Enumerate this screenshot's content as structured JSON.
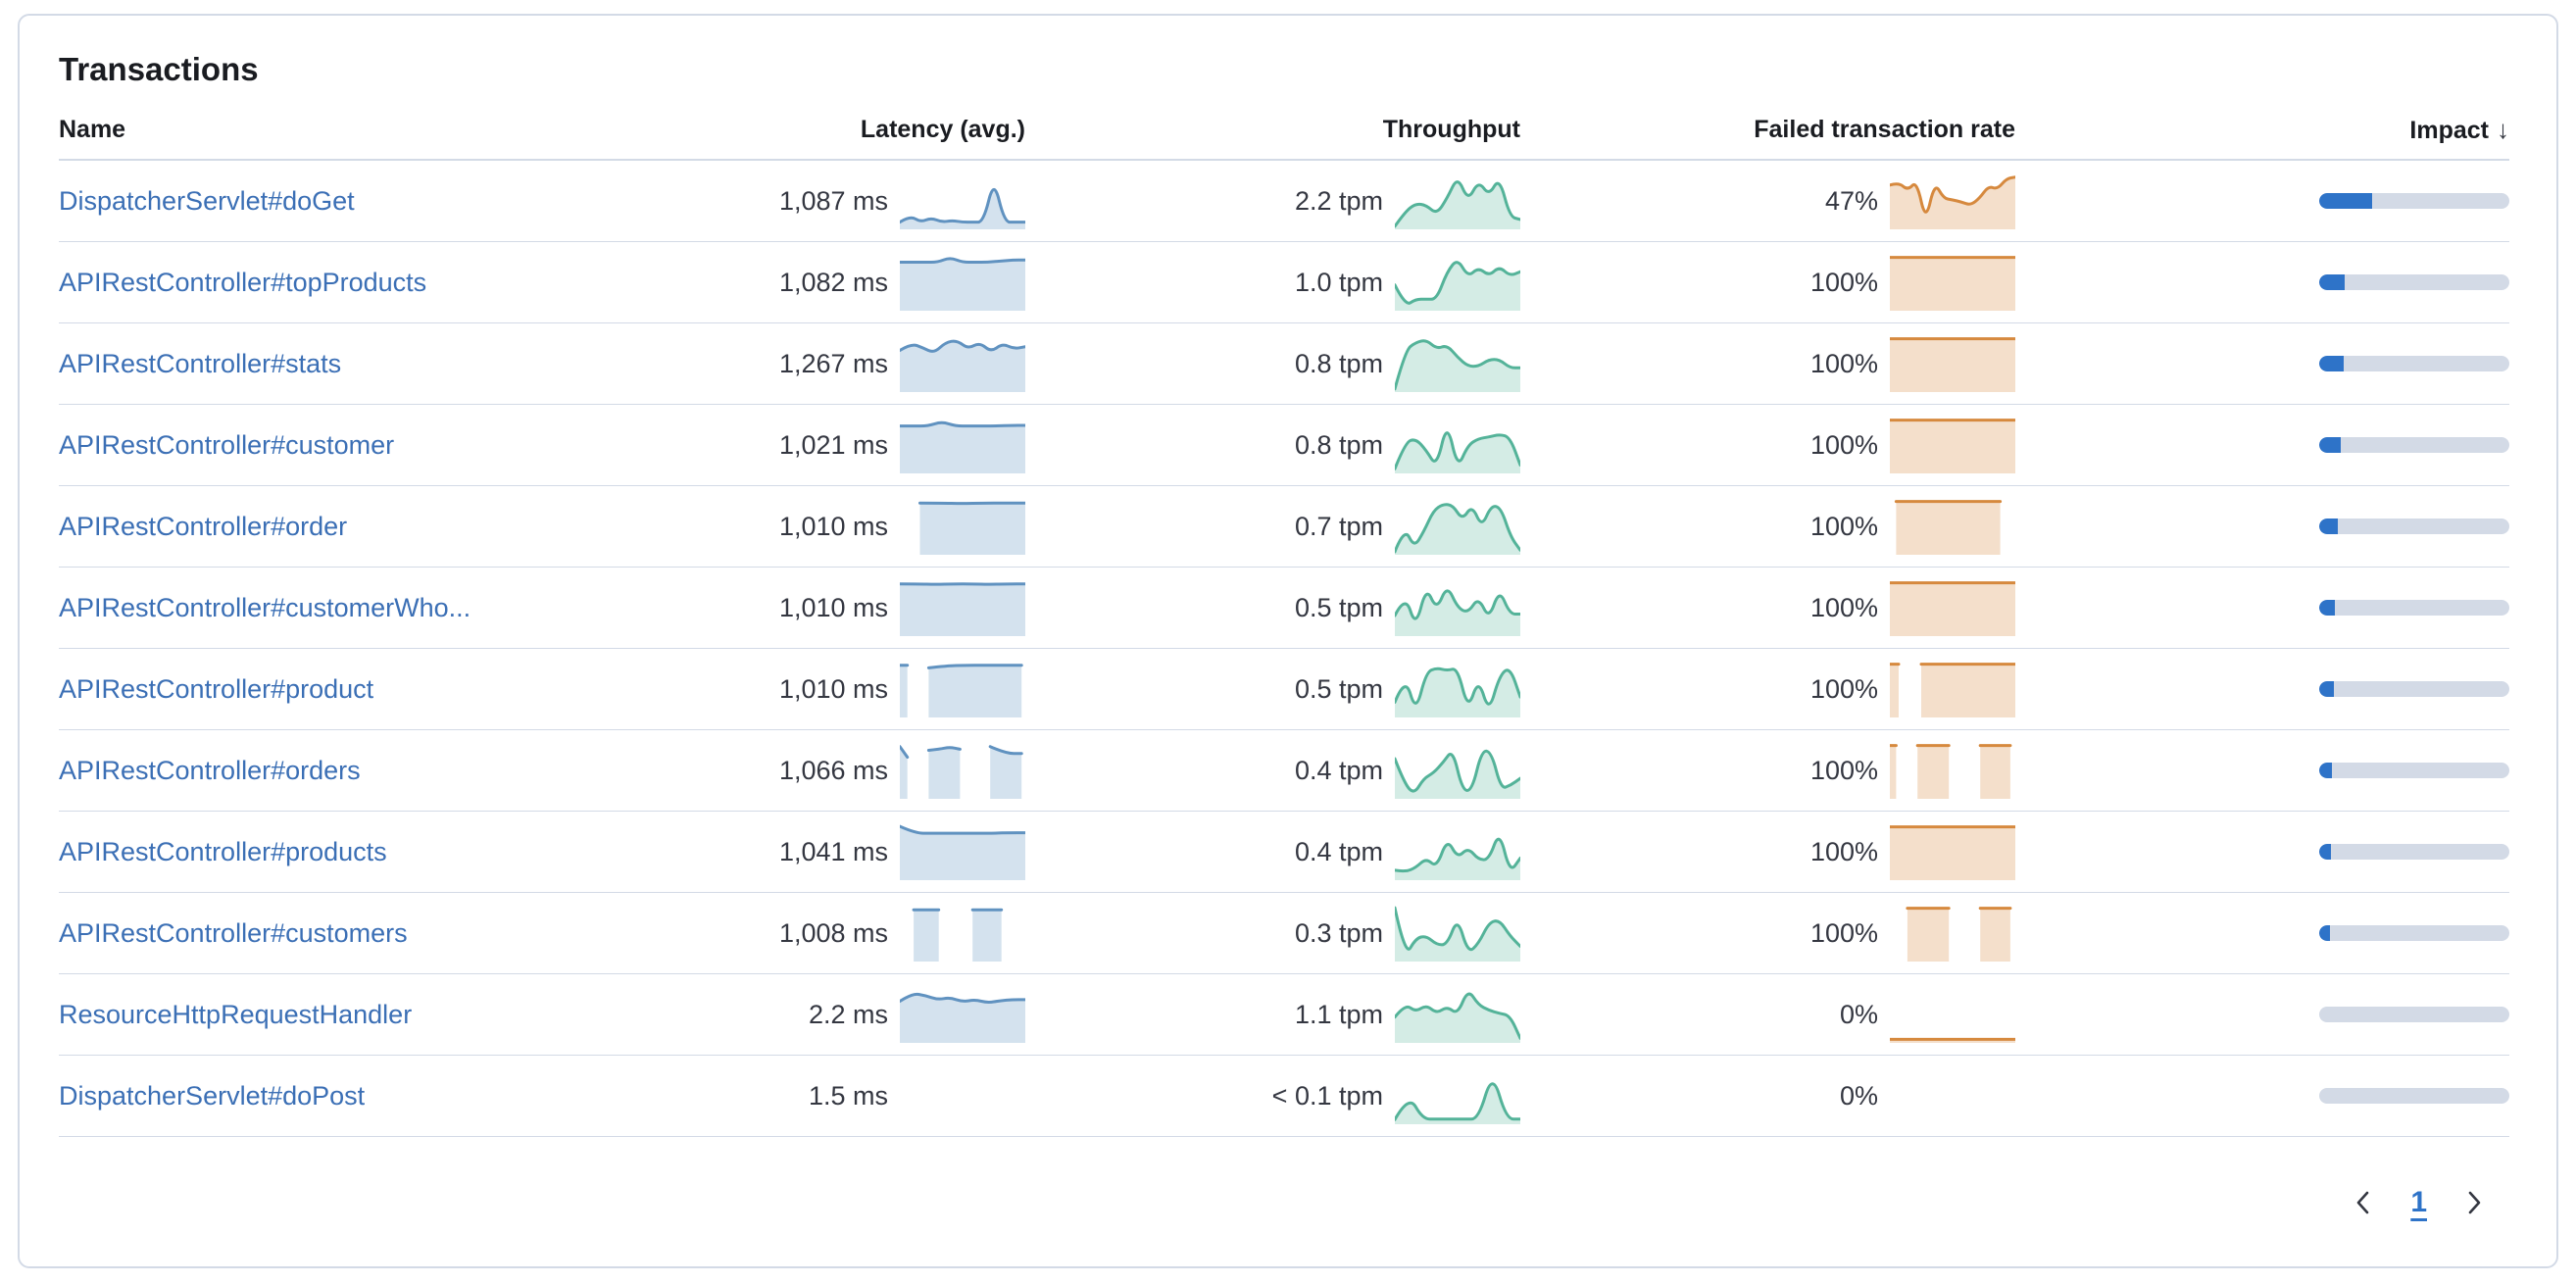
{
  "panel": {
    "title": "Transactions"
  },
  "colors": {
    "link": "#3b6fb5",
    "latency_line": "#6092c0",
    "latency_fill": "rgba(96,146,192,0.27)",
    "throughput_line": "#54b399",
    "throughput_fill": "rgba(84,179,153,0.25)",
    "error_line": "#d6893e",
    "error_fill": "rgba(214,137,62,0.27)",
    "impact_fill": "#2e73c8",
    "impact_track": "#d3dae6"
  },
  "table": {
    "columns": [
      {
        "key": "name",
        "label": "Name"
      },
      {
        "key": "latency",
        "label": "Latency (avg.)"
      },
      {
        "key": "throughput",
        "label": "Throughput"
      },
      {
        "key": "error_rate",
        "label": "Failed transaction rate"
      },
      {
        "key": "impact",
        "label": "Impact"
      }
    ],
    "sort_icon": "↓",
    "rows": [
      {
        "name": "DispatcherServlet#doGet",
        "latency": "1,087 ms",
        "throughput": "2.2 tpm",
        "error_rate": "47%",
        "impact_pct": 28,
        "latency_spark": {
          "segs": [
            {
              "x0": 0,
              "x1": 1,
              "v": [
                0.1,
                0.22,
                0.1,
                0.18,
                0.1,
                0.13,
                0.1,
                0.1,
                0.1,
                0.92,
                0.1,
                0.1,
                0.1
              ]
            }
          ]
        },
        "throughput_spark": {
          "segs": [
            {
              "x0": 0,
              "x1": 1,
              "v": [
                0.02,
                0.3,
                0.45,
                0.42,
                0.25,
                0.55,
                0.97,
                0.5,
                0.88,
                0.6,
                0.95,
                0.2,
                0.15
              ]
            }
          ]
        },
        "error_spark": {
          "segs": [
            {
              "x0": 0,
              "x1": 1,
              "v": [
                0.8,
                0.85,
                0.7,
                0.88,
                0.1,
                0.85,
                0.55,
                0.52,
                0.48,
                0.42,
                0.55,
                0.78,
                0.72,
                0.92,
                0.95
              ]
            }
          ]
        }
      },
      {
        "name": "APIRestController#topProducts",
        "latency": "1,082 ms",
        "throughput": "1.0 tpm",
        "error_rate": "100%",
        "impact_pct": 13.5,
        "latency_spark": {
          "segs": [
            {
              "x0": 0,
              "x1": 1,
              "v": [
                0.88,
                0.88,
                0.88,
                0.88,
                0.97,
                0.88,
                0.88,
                0.88,
                0.9,
                0.92,
                0.92
              ]
            }
          ]
        },
        "throughput_spark": {
          "segs": [
            {
              "x0": 0,
              "x1": 1,
              "v": [
                0.45,
                0.05,
                0.18,
                0.18,
                0.18,
                0.7,
                0.95,
                0.6,
                0.78,
                0.62,
                0.8,
                0.62,
                0.7
              ]
            }
          ]
        },
        "error_spark": {
          "segs": [
            {
              "x0": 0,
              "x1": 1,
              "v": [
                0.97,
                0.97
              ]
            }
          ]
        }
      },
      {
        "name": "APIRestController#stats",
        "latency": "1,267 ms",
        "throughput": "0.8 tpm",
        "error_rate": "100%",
        "impact_pct": 13,
        "latency_spark": {
          "segs": [
            {
              "x0": 0,
              "x1": 1,
              "v": [
                0.75,
                0.88,
                0.8,
                0.7,
                0.9,
                0.94,
                0.78,
                0.9,
                0.72,
                0.88,
                0.78,
                0.82
              ]
            }
          ]
        },
        "throughput_spark": {
          "segs": [
            {
              "x0": 0,
              "x1": 1,
              "v": [
                0.02,
                0.75,
                0.9,
                0.95,
                0.78,
                0.85,
                0.62,
                0.45,
                0.45,
                0.58,
                0.58,
                0.42,
                0.42
              ]
            }
          ]
        },
        "error_spark": {
          "segs": [
            {
              "x0": 0,
              "x1": 1,
              "v": [
                0.97,
                0.97
              ]
            }
          ]
        }
      },
      {
        "name": "APIRestController#customer",
        "latency": "1,021 ms",
        "throughput": "0.8 tpm",
        "error_rate": "100%",
        "impact_pct": 11.5,
        "latency_spark": {
          "segs": [
            {
              "x0": 0,
              "x1": 1,
              "v": [
                0.86,
                0.86,
                0.86,
                0.94,
                0.86,
                0.86,
                0.86,
                0.86,
                0.87,
                0.87
              ]
            }
          ]
        },
        "throughput_spark": {
          "segs": [
            {
              "x0": 0,
              "x1": 1,
              "v": [
                0.05,
                0.55,
                0.62,
                0.4,
                0.08,
                0.95,
                0.05,
                0.5,
                0.62,
                0.65,
                0.7,
                0.65,
                0.12
              ]
            }
          ]
        },
        "error_spark": {
          "segs": [
            {
              "x0": 0,
              "x1": 1,
              "v": [
                0.97,
                0.97
              ]
            }
          ]
        }
      },
      {
        "name": "APIRestController#order",
        "latency": "1,010 ms",
        "throughput": "0.7 tpm",
        "error_rate": "100%",
        "impact_pct": 10,
        "latency_spark": {
          "segs": [
            {
              "x0": 0.16,
              "x1": 1,
              "v": [
                0.94,
                0.94,
                0.93,
                0.94,
                0.94,
                0.94
              ]
            }
          ]
        },
        "throughput_spark": {
          "segs": [
            {
              "x0": 0,
              "x1": 1,
              "v": [
                0.02,
                0.48,
                0.1,
                0.4,
                0.8,
                0.92,
                0.9,
                0.62,
                0.9,
                0.48,
                0.9,
                0.85,
                0.3,
                0.05
              ]
            }
          ]
        },
        "error_spark": {
          "segs": [
            {
              "x0": 0.05,
              "x1": 0.88,
              "v": [
                0.97,
                0.97
              ]
            }
          ]
        }
      },
      {
        "name": "APIRestController#customerWho...",
        "latency": "1,010 ms",
        "throughput": "0.5 tpm",
        "error_rate": "100%",
        "impact_pct": 8,
        "latency_spark": {
          "segs": [
            {
              "x0": 0,
              "x1": 1,
              "v": [
                0.95,
                0.95,
                0.94,
                0.95,
                0.95,
                0.94,
                0.95,
                0.95
              ]
            }
          ]
        },
        "throughput_spark": {
          "segs": [
            {
              "x0": 0,
              "x1": 1,
              "v": [
                0.35,
                0.75,
                0.12,
                0.9,
                0.45,
                0.93,
                0.5,
                0.4,
                0.7,
                0.28,
                0.85,
                0.38,
                0.38
              ]
            }
          ]
        },
        "error_spark": {
          "segs": [
            {
              "x0": 0,
              "x1": 1,
              "v": [
                0.97,
                0.97
              ]
            }
          ]
        }
      },
      {
        "name": "APIRestController#product",
        "latency": "1,010 ms",
        "throughput": "0.5 tpm",
        "error_rate": "100%",
        "impact_pct": 7.5,
        "latency_spark": {
          "segs": [
            {
              "x0": 0,
              "x1": 0.06,
              "v": [
                0.95,
                0.95
              ]
            },
            {
              "x0": 0.23,
              "x1": 0.97,
              "v": [
                0.9,
                0.94,
                0.95,
                0.95,
                0.95,
                0.95
              ]
            }
          ]
        },
        "throughput_spark": {
          "segs": [
            {
              "x0": 0,
              "x1": 1,
              "v": [
                0.25,
                0.75,
                0.05,
                0.82,
                0.9,
                0.85,
                0.9,
                0.1,
                0.7,
                0.05,
                0.75,
                0.92,
                0.35
              ]
            }
          ]
        },
        "error_spark": {
          "segs": [
            {
              "x0": 0,
              "x1": 0.07,
              "v": [
                0.97,
                0.97
              ]
            },
            {
              "x0": 0.25,
              "x1": 1,
              "v": [
                0.97,
                0.97
              ]
            }
          ]
        }
      },
      {
        "name": "APIRestController#orders",
        "latency": "1,066 ms",
        "throughput": "0.4 tpm",
        "error_rate": "100%",
        "impact_pct": 6.5,
        "latency_spark": {
          "segs": [
            {
              "x0": 0,
              "x1": 0.06,
              "v": [
                0.95,
                0.75
              ]
            },
            {
              "x0": 0.23,
              "x1": 0.48,
              "v": [
                0.88,
                0.9,
                0.94,
                0.9
              ]
            },
            {
              "x0": 0.72,
              "x1": 0.97,
              "v": [
                0.95,
                0.82,
                0.82
              ]
            }
          ]
        },
        "throughput_spark": {
          "segs": [
            {
              "x0": 0,
              "x1": 1,
              "v": [
                0.72,
                0.25,
                0.05,
                0.35,
                0.45,
                0.65,
                0.9,
                0.12,
                0.12,
                0.88,
                0.85,
                0.15,
                0.22,
                0.35
              ]
            }
          ]
        },
        "error_spark": {
          "segs": [
            {
              "x0": 0,
              "x1": 0.05,
              "v": [
                0.97,
                0.97
              ]
            },
            {
              "x0": 0.22,
              "x1": 0.47,
              "v": [
                0.97,
                0.97
              ]
            },
            {
              "x0": 0.72,
              "x1": 0.96,
              "v": [
                0.97,
                0.97
              ]
            }
          ]
        }
      },
      {
        "name": "APIRestController#products",
        "latency": "1,041 ms",
        "throughput": "0.4 tpm",
        "error_rate": "100%",
        "impact_pct": 6,
        "latency_spark": {
          "segs": [
            {
              "x0": 0,
              "x1": 1,
              "v": [
                0.98,
                0.85,
                0.85,
                0.85,
                0.85,
                0.85,
                0.85,
                0.86,
                0.86
              ]
            }
          ]
        },
        "throughput_spark": {
          "segs": [
            {
              "x0": 0,
              "x1": 1,
              "v": [
                0.15,
                0.12,
                0.2,
                0.38,
                0.2,
                0.75,
                0.38,
                0.58,
                0.35,
                0.35,
                0.9,
                0.1,
                0.38
              ]
            }
          ]
        },
        "error_spark": {
          "segs": [
            {
              "x0": 0,
              "x1": 1,
              "v": [
                0.97,
                0.97
              ]
            }
          ]
        }
      },
      {
        "name": "APIRestController#customers",
        "latency": "1,008 ms",
        "throughput": "0.3 tpm",
        "error_rate": "100%",
        "impact_pct": 5.5,
        "latency_spark": {
          "segs": [
            {
              "x0": 0.11,
              "x1": 0.31,
              "v": [
                0.94,
                0.94
              ]
            },
            {
              "x0": 0.58,
              "x1": 0.81,
              "v": [
                0.94,
                0.94
              ]
            }
          ]
        },
        "throughput_spark": {
          "segs": [
            {
              "x0": 0,
              "x1": 1,
              "v": [
                0.98,
                0.05,
                0.4,
                0.45,
                0.28,
                0.28,
                0.8,
                0.12,
                0.3,
                0.7,
                0.75,
                0.45,
                0.25
              ]
            }
          ]
        },
        "error_spark": {
          "segs": [
            {
              "x0": 0.14,
              "x1": 0.47,
              "v": [
                0.97,
                0.97
              ]
            },
            {
              "x0": 0.72,
              "x1": 0.96,
              "v": [
                0.97,
                0.97
              ]
            }
          ]
        }
      },
      {
        "name": "ResourceHttpRequestHandler",
        "latency": "2.2 ms",
        "throughput": "1.1 tpm",
        "error_rate": "0%",
        "impact_pct": 0,
        "latency_spark": {
          "segs": [
            {
              "x0": 0,
              "x1": 1,
              "v": [
                0.75,
                0.9,
                0.86,
                0.78,
                0.82,
                0.74,
                0.78,
                0.72,
                0.76,
                0.78,
                0.78
              ]
            }
          ]
        },
        "throughput_spark": {
          "segs": [
            {
              "x0": 0,
              "x1": 1,
              "v": [
                0.45,
                0.7,
                0.55,
                0.68,
                0.52,
                0.65,
                0.5,
                0.98,
                0.68,
                0.58,
                0.52,
                0.48,
                0.05
              ]
            }
          ]
        },
        "error_spark": {
          "segs": [
            {
              "x0": 0,
              "x1": 1,
              "v": [
                0.03,
                0.03
              ]
            }
          ]
        }
      },
      {
        "name": "DispatcherServlet#doPost",
        "latency": "1.5 ms",
        "throughput": "< 0.1 tpm",
        "error_rate": "0%",
        "impact_pct": 0,
        "latency_spark": null,
        "throughput_spark": {
          "segs": [
            {
              "x0": 0,
              "x1": 1,
              "v": [
                0.05,
                0.52,
                0.06,
                0.06,
                0.06,
                0.06,
                0.06,
                0.95,
                0.06,
                0.06
              ]
            }
          ]
        },
        "error_spark": null
      }
    ]
  },
  "pagination": {
    "current_page": "1",
    "prev_icon": "chevron-left-icon",
    "next_icon": "chevron-right-icon"
  }
}
